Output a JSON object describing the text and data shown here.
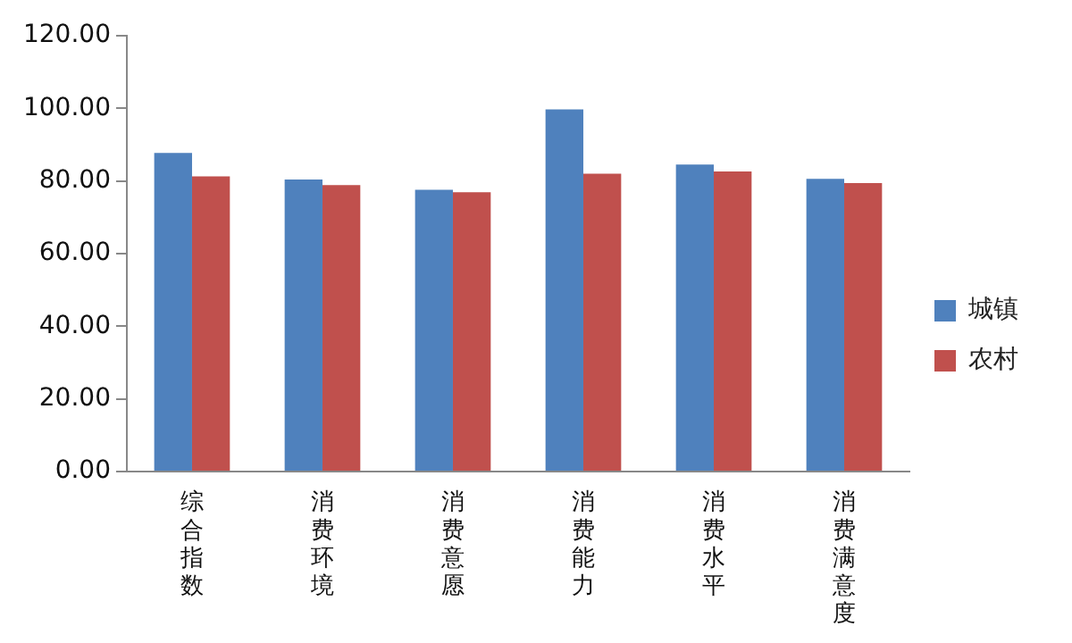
{
  "chart_data": {
    "type": "bar",
    "categories": [
      "综合指数",
      "消费环境",
      "消费意愿",
      "消费能力",
      "消费水平",
      "消费满意度"
    ],
    "series": [
      {
        "name": "城镇",
        "color": "#4f81bd",
        "values": [
          87.7,
          80.4,
          77.6,
          99.7,
          84.5,
          80.6
        ]
      },
      {
        "name": "农村",
        "color": "#c0504d",
        "values": [
          81.3,
          78.9,
          76.9,
          82.0,
          82.6,
          79.4
        ]
      }
    ],
    "ylim": [
      0,
      120
    ],
    "yticks": [
      {
        "value": 0,
        "label": "0.00"
      },
      {
        "value": 20,
        "label": "20.00"
      },
      {
        "value": 40,
        "label": "40.00"
      },
      {
        "value": 60,
        "label": "60.00"
      },
      {
        "value": 80,
        "label": "80.00"
      },
      {
        "value": 100,
        "label": "100.00"
      },
      {
        "value": 120,
        "label": "120.00"
      }
    ],
    "grid": false,
    "legend": "right"
  }
}
